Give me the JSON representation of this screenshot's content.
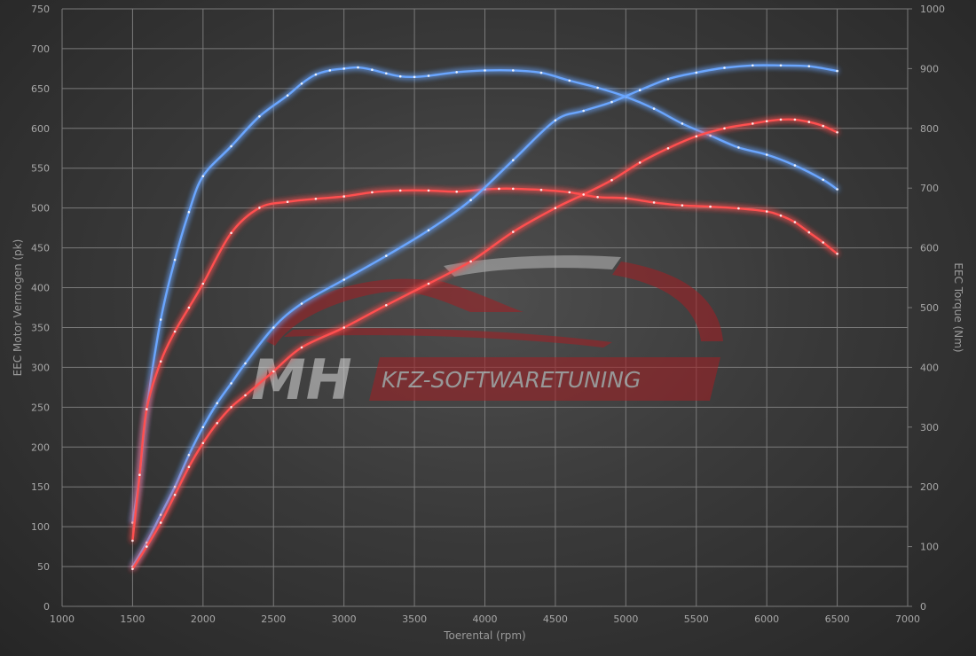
{
  "chart_data": {
    "type": "line",
    "xlabel": "Toerental (rpm)",
    "ylabel_left": "EEC Motor Vermogen (pk)",
    "ylabel_right": "EEC Torque (Nm)",
    "xlim": [
      1000,
      7000
    ],
    "ylim_left": [
      0,
      750
    ],
    "ylim_right": [
      0,
      1000
    ],
    "x_ticks": [
      1000,
      1500,
      2000,
      2500,
      3000,
      3500,
      4000,
      4500,
      5000,
      5500,
      6000,
      6500,
      7000
    ],
    "y_ticks_left": [
      0,
      50,
      100,
      150,
      200,
      250,
      300,
      350,
      400,
      450,
      500,
      550,
      600,
      650,
      700,
      750
    ],
    "y_ticks_right": [
      0,
      100,
      200,
      300,
      400,
      500,
      600,
      700,
      800,
      900,
      1000
    ],
    "grid": true,
    "colors": {
      "tuned": "#6aa6ff",
      "stock": "#ff5050"
    },
    "series": [
      {
        "axis": "right",
        "color": "tuned",
        "x": [
          1500,
          1550,
          1600,
          1700,
          1800,
          1900,
          2000,
          2200,
          2400,
          2600,
          2700,
          2800,
          2900,
          3000,
          3100,
          3200,
          3300,
          3400,
          3500,
          3600,
          3800,
          4000,
          4200,
          4400,
          4600,
          4800,
          5000,
          5200,
          5400,
          5600,
          5800,
          6000,
          6200,
          6400,
          6500
        ],
        "values": [
          140,
          220,
          330,
          480,
          580,
          660,
          720,
          770,
          820,
          855,
          875,
          890,
          897,
          900,
          902,
          898,
          892,
          887,
          886,
          888,
          894,
          897,
          897,
          893,
          880,
          868,
          853,
          833,
          808,
          788,
          768,
          756,
          738,
          714,
          698
        ]
      },
      {
        "axis": "right",
        "color": "stock",
        "x": [
          1500,
          1550,
          1600,
          1700,
          1800,
          1900,
          2000,
          2200,
          2400,
          2600,
          2800,
          3000,
          3200,
          3400,
          3600,
          3800,
          4000,
          4100,
          4200,
          4400,
          4600,
          4800,
          5000,
          5200,
          5400,
          5600,
          5800,
          6000,
          6100,
          6200,
          6300,
          6400,
          6500
        ],
        "values": [
          110,
          220,
          330,
          410,
          460,
          500,
          540,
          625,
          667,
          677,
          682,
          686,
          693,
          696,
          696,
          694,
          698,
          699,
          699,
          697,
          693,
          685,
          683,
          676,
          671,
          669,
          666,
          661,
          654,
          643,
          626,
          609,
          590
        ]
      },
      {
        "axis": "left",
        "color": "tuned",
        "x": [
          1500,
          1600,
          1700,
          1800,
          1900,
          2000,
          2100,
          2200,
          2300,
          2500,
          2700,
          3000,
          3300,
          3600,
          3900,
          4200,
          4500,
          4700,
          4900,
          5100,
          5300,
          5500,
          5700,
          5900,
          6100,
          6300,
          6500
        ],
        "values": [
          50,
          80,
          115,
          150,
          190,
          225,
          255,
          280,
          305,
          350,
          380,
          410,
          440,
          472,
          510,
          560,
          610,
          622,
          633,
          648,
          662,
          670,
          676,
          679,
          679,
          678,
          672
        ]
      },
      {
        "axis": "left",
        "color": "stock",
        "x": [
          1500,
          1600,
          1700,
          1800,
          1900,
          2000,
          2100,
          2200,
          2300,
          2500,
          2700,
          3000,
          3300,
          3600,
          3900,
          4200,
          4500,
          4700,
          4900,
          5100,
          5300,
          5500,
          5700,
          5900,
          6000,
          6100,
          6200,
          6300,
          6400,
          6500
        ],
        "values": [
          47,
          75,
          105,
          140,
          175,
          205,
          230,
          250,
          265,
          295,
          325,
          350,
          378,
          405,
          433,
          470,
          500,
          517,
          535,
          557,
          575,
          590,
          600,
          606,
          609,
          611,
          611,
          608,
          603,
          595
        ]
      }
    ]
  },
  "watermark": {
    "logo_letters": "MH",
    "text": "KFZ-SOFTWARETUNING"
  }
}
